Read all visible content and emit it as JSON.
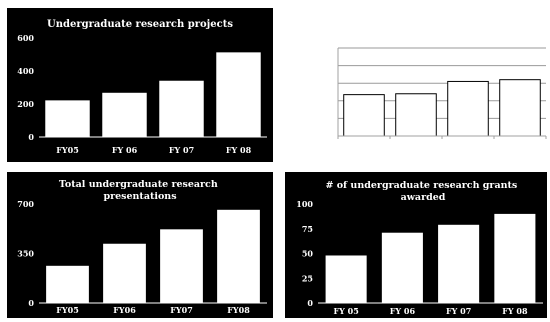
{
  "chart_data": [
    {
      "type": "bar",
      "title": "Undergraduate research projects",
      "categories": [
        "FY05",
        "FY 06",
        "FY 07",
        "FY 08"
      ],
      "values": [
        222,
        268,
        341,
        513
      ],
      "ylim": [
        0,
        600
      ],
      "yticks": [
        "0",
        "200",
        "400",
        "600"
      ],
      "grid": false,
      "colors": {
        "background": "#000000",
        "bar": "#ffffff",
        "text": "#ffffff"
      }
    },
    {
      "type": "bar",
      "title": "",
      "categories": [
        "",
        "",
        "",
        ""
      ],
      "values": [
        47,
        48,
        62,
        64
      ],
      "ylim": [
        0,
        100
      ],
      "yticks": [],
      "grid": true,
      "colors": {
        "background": "#ffffff",
        "bar": "#ffffff",
        "text": "#000000"
      }
    },
    {
      "type": "bar",
      "title": "Total undergraduate research presentations",
      "title_lines": [
        "Total undergraduate research",
        "presentations"
      ],
      "categories": [
        "FY05",
        "FY06",
        "FY07",
        "FY08"
      ],
      "values": [
        263,
        419,
        521,
        659
      ],
      "ylim": [
        0,
        700
      ],
      "yticks": [
        "0",
        "350",
        "700"
      ],
      "grid": false,
      "colors": {
        "background": "#000000",
        "bar": "#ffffff",
        "text": "#ffffff"
      }
    },
    {
      "type": "bar",
      "title": "# of undergraduate research grants awarded",
      "title_lines": [
        "# of undergraduate research grants",
        "awarded"
      ],
      "categories": [
        "FY 05",
        "FY 06",
        "FY 07",
        "FY 08"
      ],
      "values": [
        48,
        71,
        79,
        90
      ],
      "ylim": [
        0,
        100
      ],
      "yticks": [
        "0",
        "25",
        "50",
        "75",
        "100"
      ],
      "grid": false,
      "colors": {
        "background": "#000000",
        "bar": "#ffffff",
        "text": "#ffffff"
      }
    }
  ]
}
